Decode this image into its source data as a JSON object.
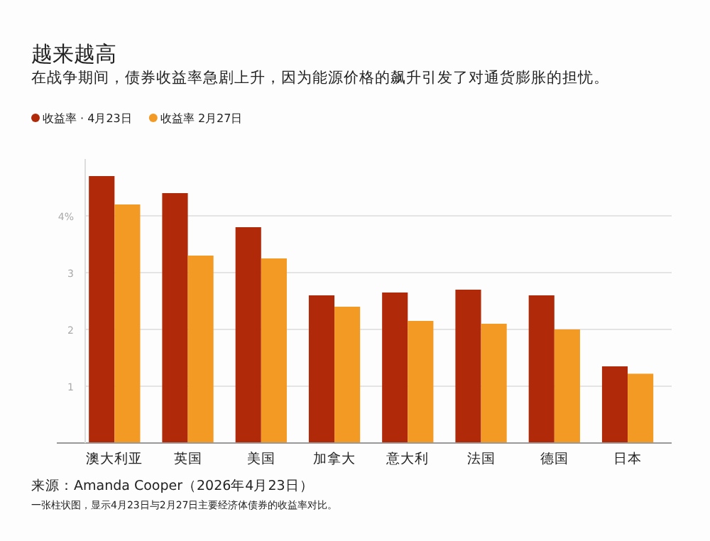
{
  "chart_data": {
    "type": "bar",
    "title": "越来越高",
    "subtitle": "在战争期间，债券收益率急剧上升，因为能源价格的飙升引发了对通货膨胀的担忧。",
    "categories": [
      "澳大利亚",
      "英国",
      "美国",
      "加拿大",
      "意大利",
      "法国",
      "德国",
      "日本"
    ],
    "series": [
      {
        "name": "收益率 · 4月23日",
        "color": "#b02a0a",
        "values": [
          4.7,
          4.4,
          3.8,
          2.6,
          2.65,
          2.7,
          2.6,
          1.35
        ]
      },
      {
        "name": "收益率 2月27日",
        "color": "#f39a25",
        "values": [
          4.2,
          3.3,
          3.25,
          2.4,
          2.15,
          2.1,
          2.0,
          1.22
        ]
      }
    ],
    "ylim": [
      0,
      5
    ],
    "yticks": [
      {
        "value": 1,
        "label": "1"
      },
      {
        "value": 2,
        "label": "2"
      },
      {
        "value": 3,
        "label": "3"
      },
      {
        "value": 4,
        "label": "4%"
      }
    ],
    "grid": "y",
    "legend": "top left",
    "annotations": [
      "来源：Amanda Cooper（2026年4月23日）",
      "一张柱状图，显示4月23日与2月27日主要经济体债券的收益率对比。"
    ]
  }
}
